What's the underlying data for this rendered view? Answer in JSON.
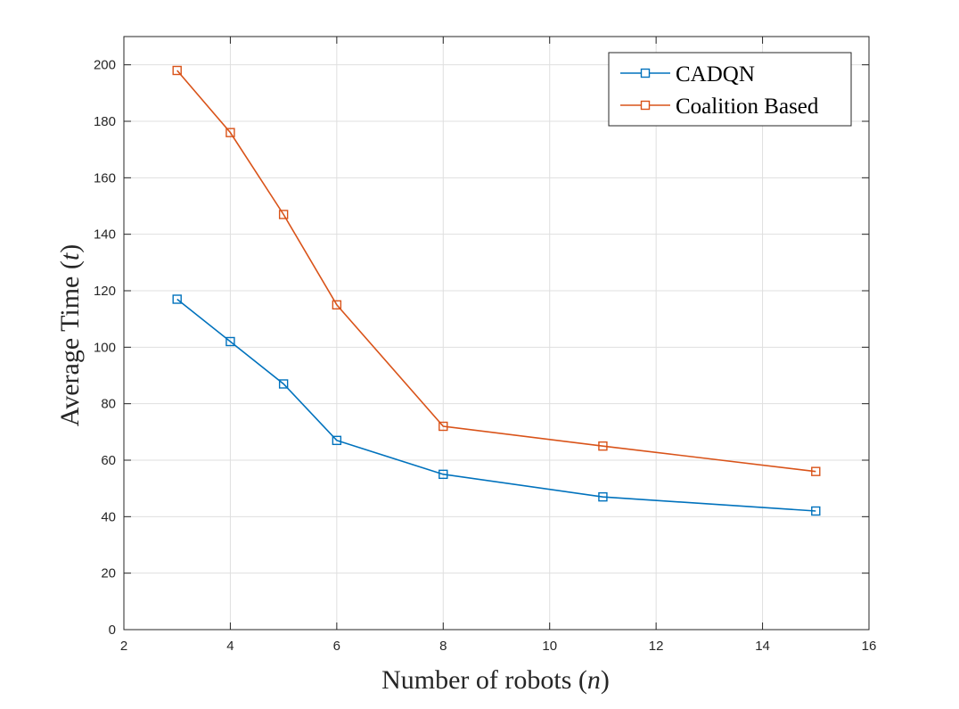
{
  "chart_data": {
    "type": "line",
    "title": "",
    "xlabel_main": "Number of robots (",
    "xlabel_var": "n",
    "xlabel_end": ")",
    "ylabel_main": "Average Time (",
    "ylabel_var": "t",
    "ylabel_end": ")",
    "xlim": [
      2,
      16
    ],
    "ylim": [
      0,
      210
    ],
    "xticks": [
      2,
      4,
      6,
      8,
      10,
      12,
      14,
      16
    ],
    "yticks": [
      0,
      20,
      40,
      60,
      80,
      100,
      120,
      140,
      160,
      180,
      200
    ],
    "grid": true,
    "legend_position": "top-right",
    "x": [
      3,
      4,
      5,
      6,
      8,
      11,
      15
    ],
    "series": [
      {
        "name": "CADQN",
        "color": "#0072bd",
        "marker": "square",
        "values": [
          117,
          102,
          87,
          67,
          55,
          47,
          42
        ]
      },
      {
        "name": "Coalition Based",
        "color": "#d95319",
        "marker": "square",
        "values": [
          198,
          176,
          147,
          115,
          72,
          65,
          56
        ]
      }
    ]
  }
}
